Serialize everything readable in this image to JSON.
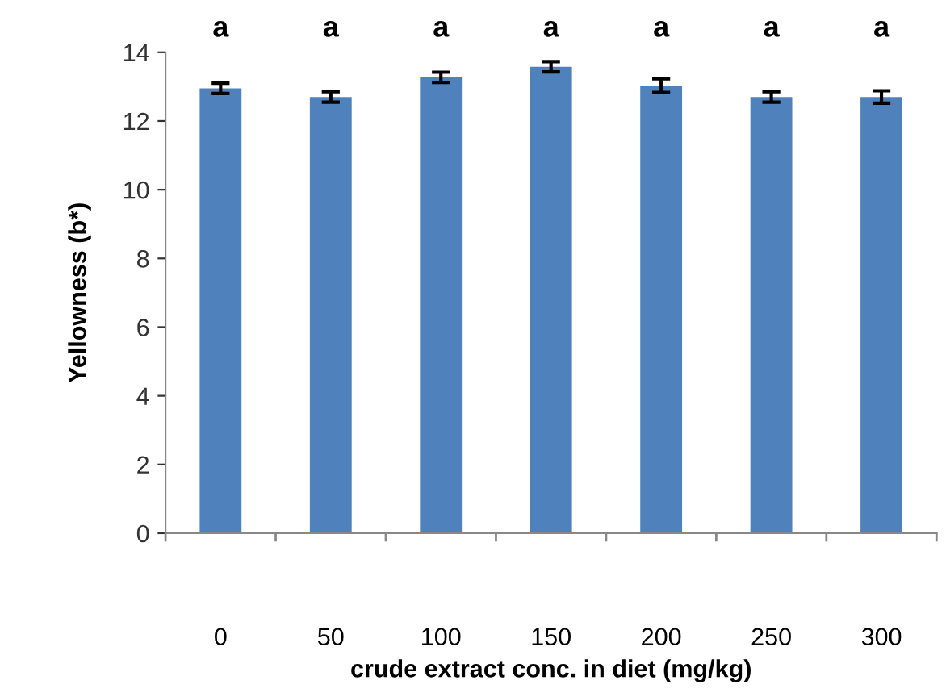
{
  "chart_data": {
    "type": "bar",
    "xlabel": "crude extract conc. in diet (mg/kg)",
    "ylabel": "Yellowness (b*)",
    "categories": [
      "0",
      "50",
      "100",
      "150",
      "200",
      "250",
      "300"
    ],
    "values": [
      12.95,
      12.7,
      13.27,
      13.58,
      13.03,
      12.7,
      12.7
    ],
    "errors": [
      0.15,
      0.15,
      0.15,
      0.15,
      0.2,
      0.15,
      0.18
    ],
    "color": "#4f81bd",
    "ylim": [
      0,
      14
    ],
    "yticks": [
      0,
      2,
      4,
      6,
      8,
      10,
      12,
      14
    ],
    "grid": false,
    "legend": false,
    "value_labels": [
      "a",
      "a",
      "a",
      "a",
      "a",
      "a",
      "a"
    ]
  }
}
